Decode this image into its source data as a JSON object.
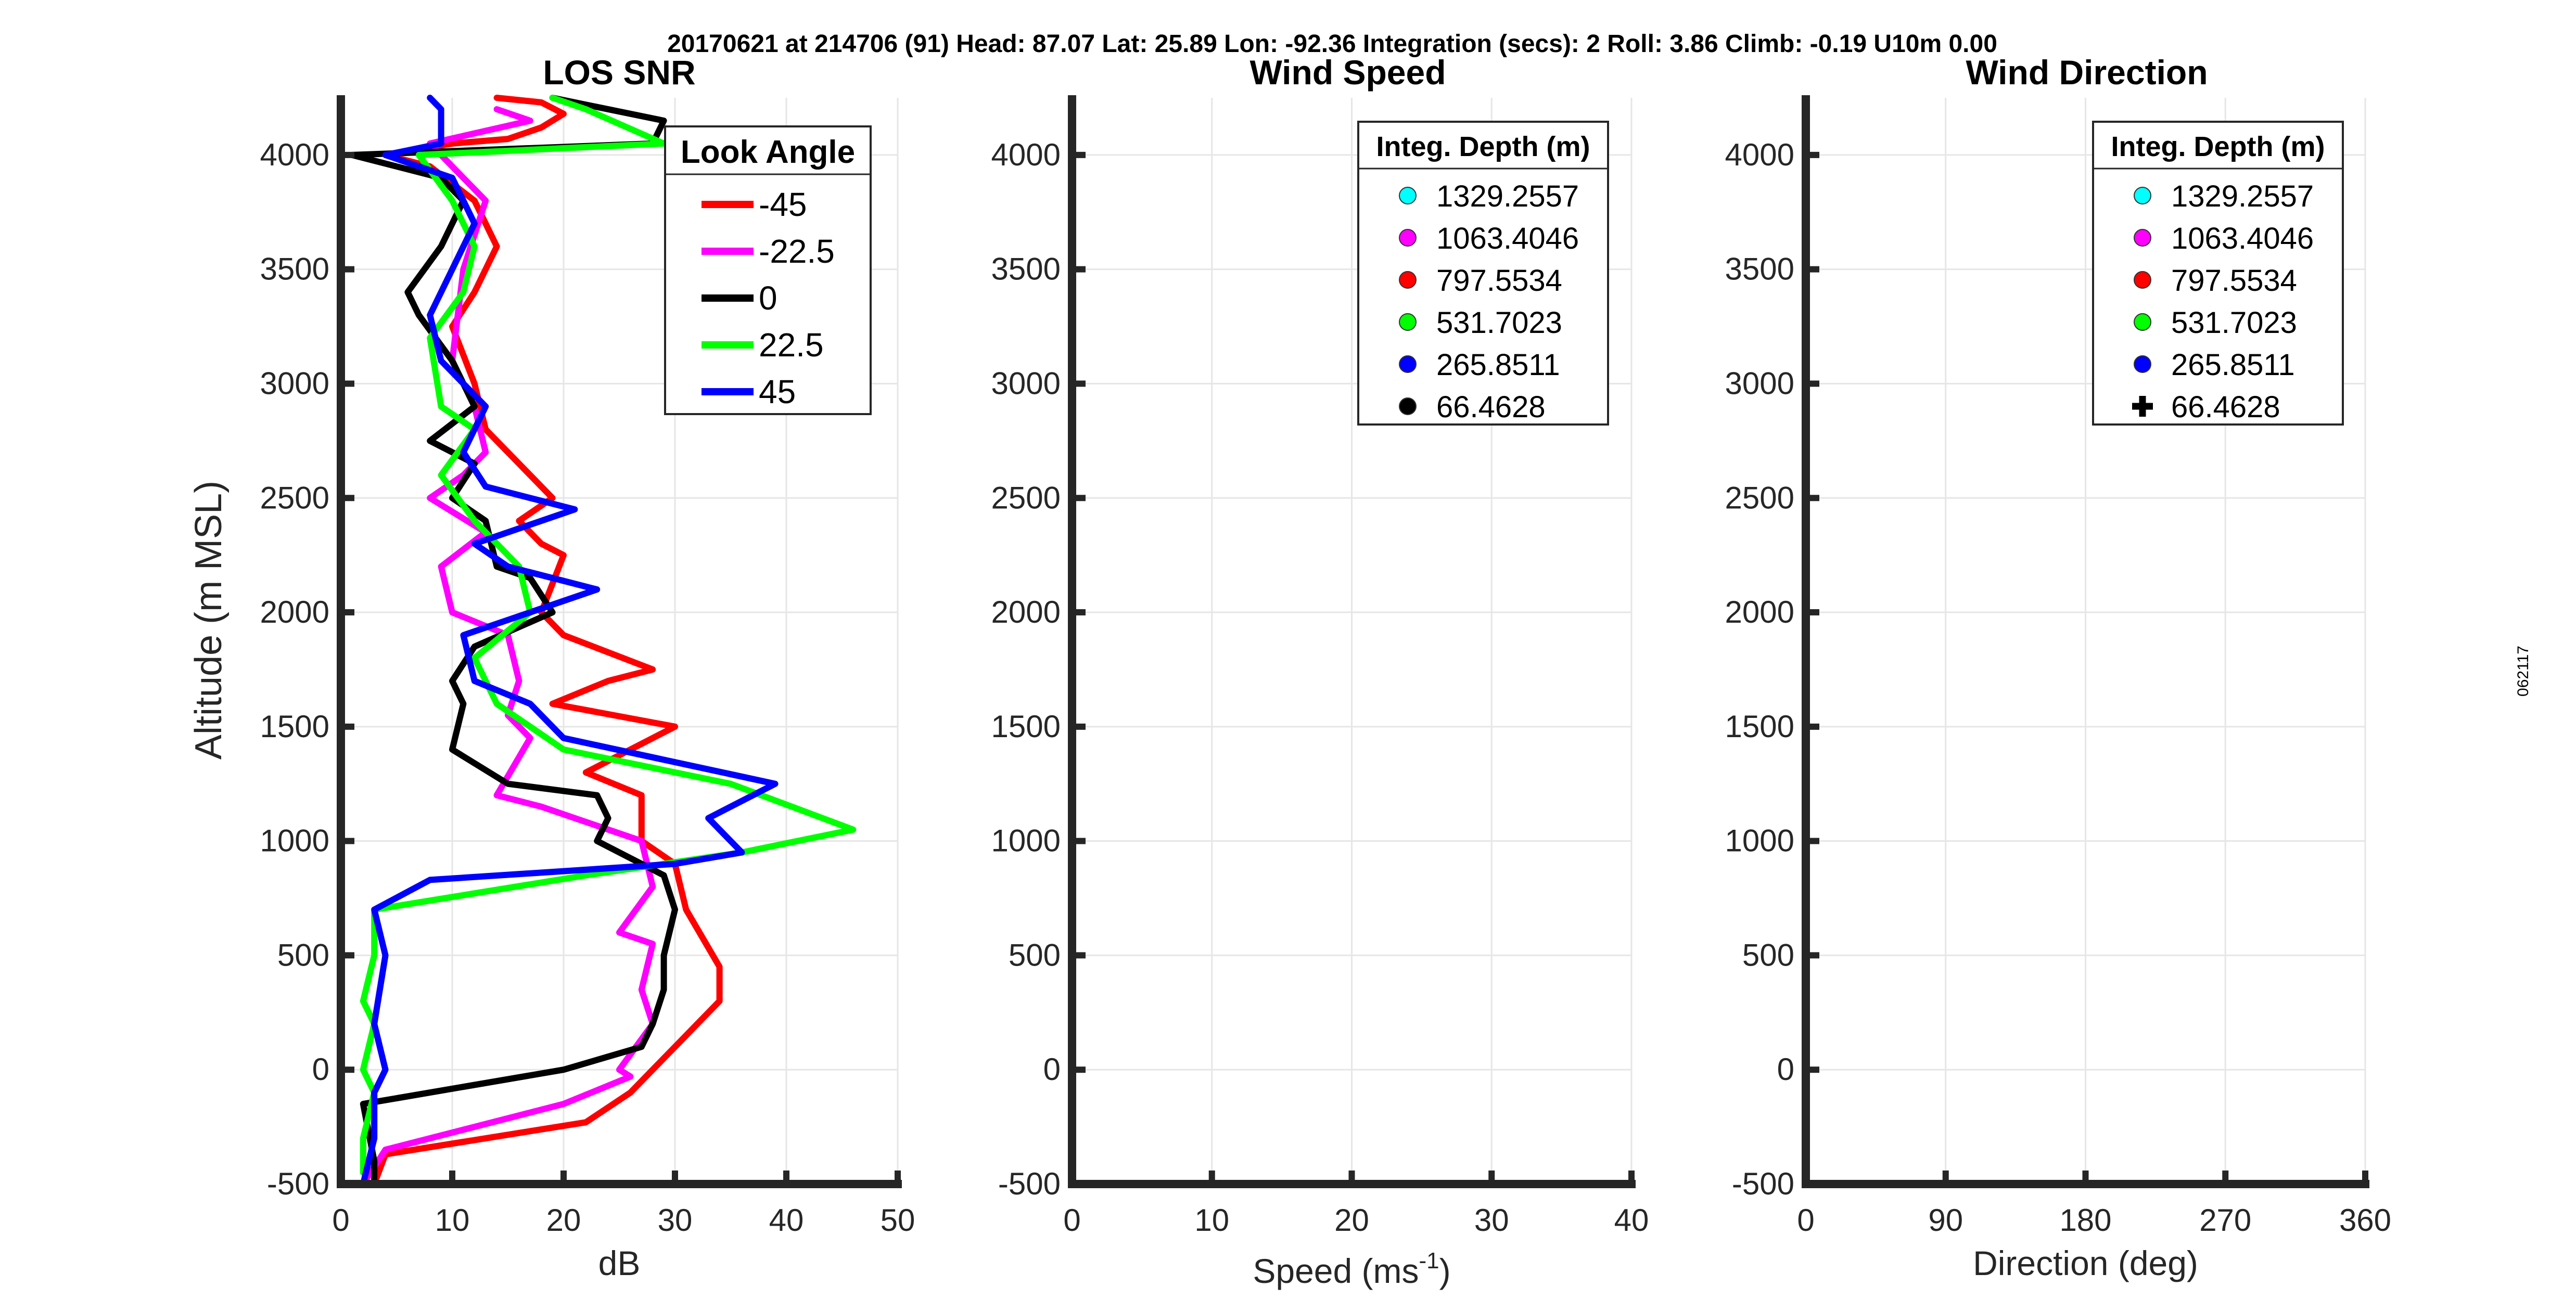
{
  "header": "20170621 at 214706 (91)  Head: 87.07  Lat: 25.89  Lon: -92.36  Integration (secs): 2  Roll: 3.86  Climb: -0.19  U10m 0.00",
  "side_label": "062117",
  "chart_data": [
    {
      "type": "line",
      "title": "LOS SNR",
      "xlabel": "dB",
      "ylabel": "Altitude (m MSL)",
      "xlim": [
        0,
        50
      ],
      "ylim": [
        -500,
        4250
      ],
      "xticks": [
        0,
        10,
        20,
        30,
        40,
        50
      ],
      "yticks": [
        -500,
        0,
        500,
        1000,
        1500,
        2000,
        2500,
        3000,
        3500,
        4000
      ],
      "grid": true,
      "legend": {
        "title": "Look Angle",
        "position": "top-right"
      },
      "series": [
        {
          "name": "-45",
          "color": "#ff0000",
          "points": [
            [
              3,
              -500
            ],
            [
              4,
              -370
            ],
            [
              22,
              -230
            ],
            [
              26,
              -100
            ],
            [
              28,
              0
            ],
            [
              30,
              100
            ],
            [
              34,
              300
            ],
            [
              34,
              450
            ],
            [
              31,
              700
            ],
            [
              30,
              900
            ],
            [
              27,
              1000
            ],
            [
              27,
              1200
            ],
            [
              22,
              1300
            ],
            [
              30,
              1500
            ],
            [
              19,
              1600
            ],
            [
              24,
              1700
            ],
            [
              28,
              1750
            ],
            [
              20,
              1900
            ],
            [
              18,
              2000
            ],
            [
              20,
              2250
            ],
            [
              18,
              2300
            ],
            [
              16,
              2400
            ],
            [
              19,
              2500
            ],
            [
              17,
              2600
            ],
            [
              13,
              2800
            ],
            [
              12,
              3000
            ],
            [
              10,
              3250
            ],
            [
              12,
              3400
            ],
            [
              14,
              3600
            ],
            [
              12,
              3800
            ],
            [
              8,
              3950
            ],
            [
              4,
              4000
            ],
            [
              10,
              4050
            ],
            [
              15,
              4070
            ],
            [
              18,
              4120
            ],
            [
              20,
              4180
            ],
            [
              18,
              4230
            ],
            [
              14,
              4250
            ]
          ]
        },
        {
          "name": "-22.5",
          "color": "#ff00ff",
          "points": [
            [
              2,
              -500
            ],
            [
              4,
              -350
            ],
            [
              20,
              -150
            ],
            [
              26,
              -30
            ],
            [
              25,
              0
            ],
            [
              28,
              200
            ],
            [
              27,
              350
            ],
            [
              28,
              550
            ],
            [
              25,
              600
            ],
            [
              28,
              800
            ],
            [
              27,
              1000
            ],
            [
              18,
              1150
            ],
            [
              14,
              1200
            ],
            [
              17,
              1450
            ],
            [
              15,
              1550
            ],
            [
              16,
              1700
            ],
            [
              15,
              1900
            ],
            [
              10,
              2000
            ],
            [
              9,
              2200
            ],
            [
              13,
              2350
            ],
            [
              8,
              2500
            ],
            [
              11,
              2600
            ],
            [
              13,
              2700
            ],
            [
              12,
              2900
            ],
            [
              10,
              3100
            ],
            [
              11,
              3500
            ],
            [
              13,
              3800
            ],
            [
              11,
              3900
            ],
            [
              8,
              4050
            ],
            [
              17,
              4150
            ],
            [
              14,
              4200
            ]
          ]
        },
        {
          "name": "0",
          "color": "#000000",
          "points": [
            [
              3,
              -500
            ],
            [
              3,
              -400
            ],
            [
              2,
              -150
            ],
            [
              20,
              0
            ],
            [
              27,
              100
            ],
            [
              28,
              200
            ],
            [
              29,
              350
            ],
            [
              29,
              500
            ],
            [
              30,
              700
            ],
            [
              29,
              850
            ],
            [
              27,
              900
            ],
            [
              23,
              1000
            ],
            [
              24,
              1100
            ],
            [
              23,
              1200
            ],
            [
              15,
              1250
            ],
            [
              10,
              1400
            ],
            [
              11,
              1600
            ],
            [
              10,
              1700
            ],
            [
              12,
              1850
            ],
            [
              19,
              2000
            ],
            [
              17,
              2150
            ],
            [
              14,
              2200
            ],
            [
              13,
              2400
            ],
            [
              10,
              2500
            ],
            [
              12,
              2650
            ],
            [
              8,
              2750
            ],
            [
              12,
              2900
            ],
            [
              10,
              3100
            ],
            [
              7,
              3300
            ],
            [
              6,
              3400
            ],
            [
              9,
              3600
            ],
            [
              11,
              3800
            ],
            [
              9,
              3900
            ],
            [
              1,
              4000
            ],
            [
              28,
              4050
            ],
            [
              29,
              4150
            ],
            [
              19,
              4250
            ]
          ]
        },
        {
          "name": "22.5",
          "color": "#00ff00",
          "points": [
            [
              2,
              -450
            ],
            [
              2,
              -300
            ],
            [
              3,
              -100
            ],
            [
              2,
              0
            ],
            [
              3,
              200
            ],
            [
              2,
              300
            ],
            [
              3,
              500
            ],
            [
              3,
              700
            ],
            [
              22,
              850
            ],
            [
              36,
              950
            ],
            [
              46,
              1050
            ],
            [
              35,
              1250
            ],
            [
              20,
              1400
            ],
            [
              14,
              1600
            ],
            [
              12,
              1800
            ],
            [
              17,
              2000
            ],
            [
              16,
              2200
            ],
            [
              12,
              2400
            ],
            [
              9,
              2600
            ],
            [
              12,
              2800
            ],
            [
              9,
              2900
            ],
            [
              8,
              3200
            ],
            [
              11,
              3400
            ],
            [
              12,
              3600
            ],
            [
              10,
              3800
            ],
            [
              7,
              4000
            ],
            [
              29,
              4050
            ],
            [
              22,
              4200
            ],
            [
              19,
              4250
            ]
          ]
        },
        {
          "name": "45",
          "color": "#0000ff",
          "points": [
            [
              2,
              -500
            ],
            [
              3,
              -300
            ],
            [
              3,
              -100
            ],
            [
              4,
              0
            ],
            [
              3,
              200
            ],
            [
              4,
              500
            ],
            [
              3,
              700
            ],
            [
              8,
              830
            ],
            [
              30,
              900
            ],
            [
              36,
              950
            ],
            [
              33,
              1100
            ],
            [
              39,
              1250
            ],
            [
              20,
              1450
            ],
            [
              17,
              1600
            ],
            [
              12,
              1700
            ],
            [
              11,
              1900
            ],
            [
              23,
              2100
            ],
            [
              15,
              2200
            ],
            [
              12,
              2300
            ],
            [
              21,
              2450
            ],
            [
              13,
              2550
            ],
            [
              11,
              2700
            ],
            [
              13,
              2900
            ],
            [
              9,
              3100
            ],
            [
              8,
              3300
            ],
            [
              10,
              3500
            ],
            [
              12,
              3700
            ],
            [
              10,
              3900
            ],
            [
              4,
              4000
            ],
            [
              9,
              4050
            ],
            [
              9,
              4200
            ],
            [
              8,
              4250
            ]
          ]
        }
      ]
    },
    {
      "type": "scatter",
      "title": "Wind Speed",
      "xlabel": "Speed (ms",
      "xlabel_sup": "-1",
      "xlabel_tail": ")",
      "xlim": [
        0,
        40
      ],
      "ylim": [
        -500,
        4250
      ],
      "xticks": [
        0,
        10,
        20,
        30,
        40
      ],
      "yticks": [
        -500,
        0,
        500,
        1000,
        1500,
        2000,
        2500,
        3000,
        3500,
        4000
      ],
      "grid": true,
      "legend": {
        "title": "Integ. Depth (m)",
        "position": "top-right",
        "entries": [
          {
            "label": "1329.2557",
            "color": "#00ffff",
            "marker": "circle"
          },
          {
            "label": "1063.4046",
            "color": "#ff00ff",
            "marker": "circle"
          },
          {
            "label": "797.5534",
            "color": "#ff0000",
            "marker": "circle"
          },
          {
            "label": "531.7023",
            "color": "#00ff00",
            "marker": "circle"
          },
          {
            "label": "265.8511",
            "color": "#0000ff",
            "marker": "circle"
          },
          {
            "label": "66.4628",
            "color": "#000000",
            "marker": "circle"
          }
        ]
      },
      "series": []
    },
    {
      "type": "scatter",
      "title": "Wind Direction",
      "xlabel": "Direction (deg)",
      "xlim": [
        0,
        360
      ],
      "ylim": [
        -500,
        4250
      ],
      "xticks": [
        0,
        90,
        180,
        270,
        360
      ],
      "yticks": [
        -500,
        0,
        500,
        1000,
        1500,
        2000,
        2500,
        3000,
        3500,
        4000
      ],
      "grid": true,
      "legend": {
        "title": "Integ. Depth (m)",
        "position": "top-right",
        "entries": [
          {
            "label": "1329.2557",
            "color": "#00ffff",
            "marker": "circle"
          },
          {
            "label": "1063.4046",
            "color": "#ff00ff",
            "marker": "circle"
          },
          {
            "label": "797.5534",
            "color": "#ff0000",
            "marker": "circle"
          },
          {
            "label": "531.7023",
            "color": "#00ff00",
            "marker": "circle"
          },
          {
            "label": "265.8511",
            "color": "#0000ff",
            "marker": "circle"
          },
          {
            "label": "66.4628",
            "color": "#000000",
            "marker": "plus"
          }
        ]
      },
      "series": []
    }
  ]
}
